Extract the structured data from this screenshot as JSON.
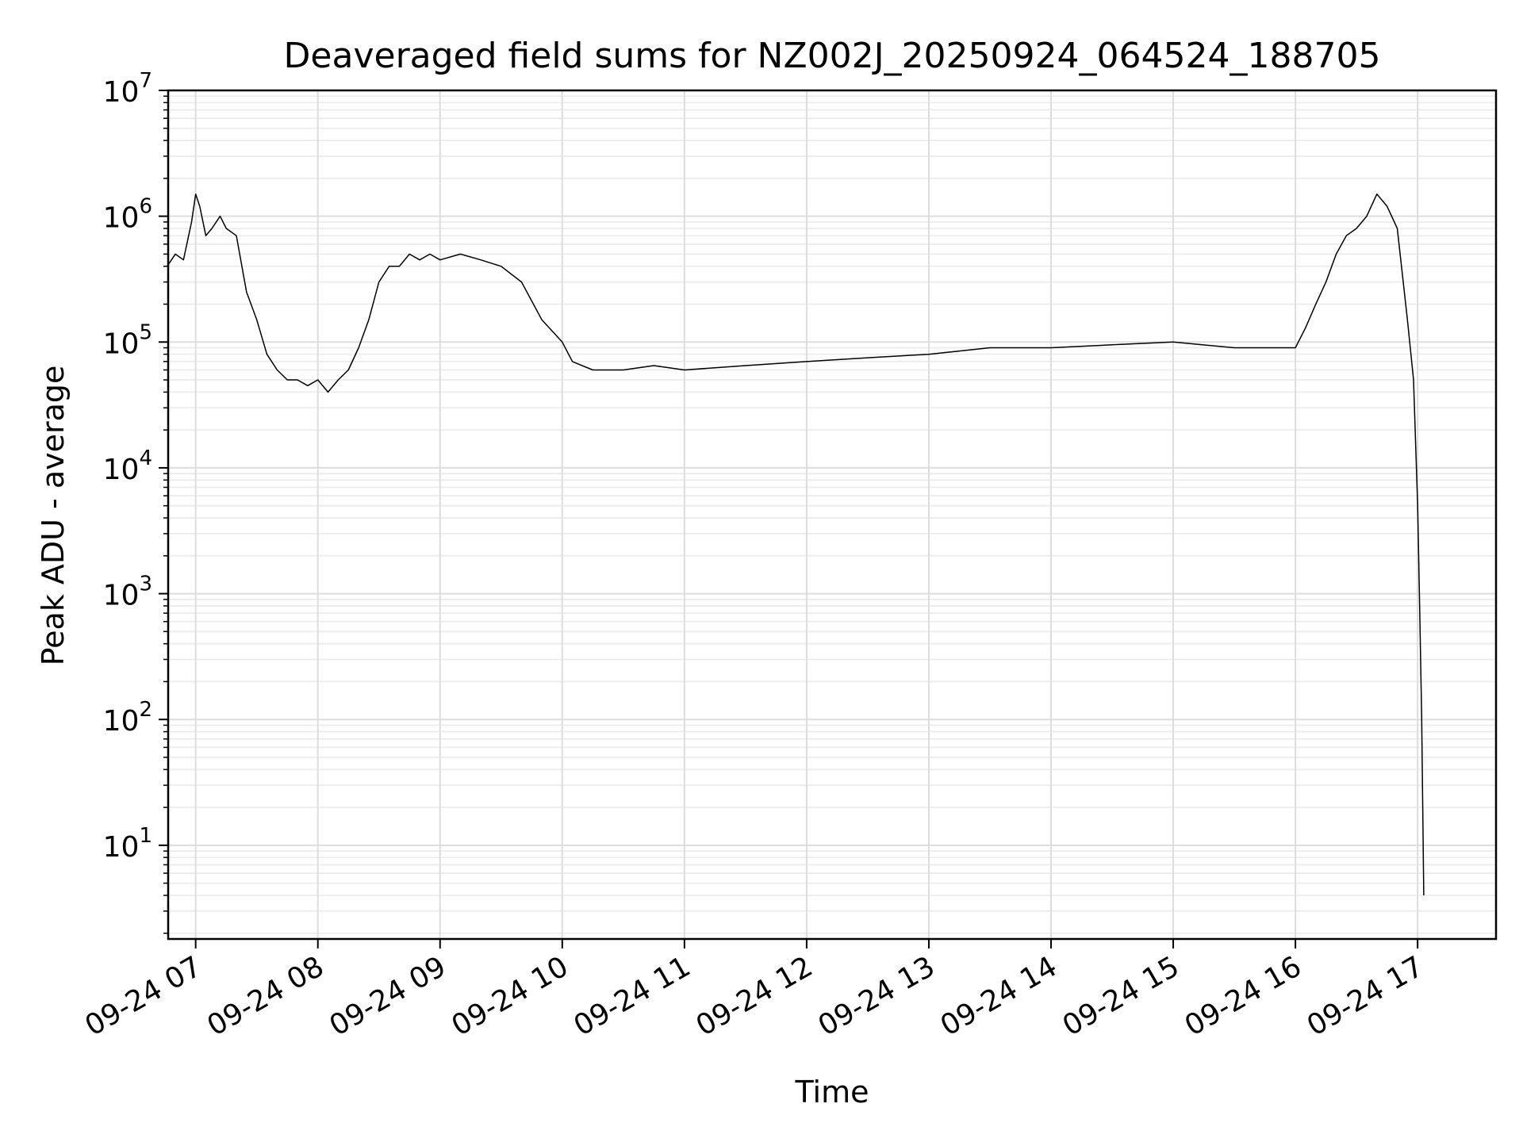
{
  "chart_data": {
    "type": "line",
    "title": "Deaveraged field sums for NZ002J_20250924_064524_188705",
    "xlabel": "Time",
    "ylabel": "Peak ADU - average",
    "y_scale": "log",
    "ylim": [
      1.8,
      10000000
    ],
    "xlim": [
      "09-24 06:46:30",
      "09-24 17:38:30"
    ],
    "grid": true,
    "grid_minor": true,
    "line_color": "#000000",
    "x_ticks": [
      {
        "label": "09-24 07",
        "value": "09-24 07:00"
      },
      {
        "label": "09-24 08",
        "value": "09-24 08:00"
      },
      {
        "label": "09-24 09",
        "value": "09-24 09:00"
      },
      {
        "label": "09-24 10",
        "value": "09-24 10:00"
      },
      {
        "label": "09-24 11",
        "value": "09-24 11:00"
      },
      {
        "label": "09-24 12",
        "value": "09-24 12:00"
      },
      {
        "label": "09-24 13",
        "value": "09-24 13:00"
      },
      {
        "label": "09-24 14",
        "value": "09-24 14:00"
      },
      {
        "label": "09-24 15",
        "value": "09-24 15:00"
      },
      {
        "label": "09-24 16",
        "value": "09-24 16:00"
      },
      {
        "label": "09-24 17",
        "value": "09-24 17:00"
      }
    ],
    "y_ticks": [
      {
        "base": "10",
        "exp": "1",
        "value": 10
      },
      {
        "base": "10",
        "exp": "2",
        "value": 100
      },
      {
        "base": "10",
        "exp": "3",
        "value": 1000
      },
      {
        "base": "10",
        "exp": "4",
        "value": 10000
      },
      {
        "base": "10",
        "exp": "5",
        "value": 100000
      },
      {
        "base": "10",
        "exp": "6",
        "value": 1000000
      },
      {
        "base": "10",
        "exp": "7",
        "value": 10000000
      }
    ],
    "series": [
      {
        "points": [
          [
            "09-24 06:46",
            400000
          ],
          [
            "09-24 06:50",
            500000
          ],
          [
            "09-24 06:54",
            450000
          ],
          [
            "09-24 06:58",
            900000
          ],
          [
            "09-24 07:00",
            1500000
          ],
          [
            "09-24 07:02",
            1200000
          ],
          [
            "09-24 07:05",
            700000
          ],
          [
            "09-24 07:08",
            800000
          ],
          [
            "09-24 07:12",
            1000000
          ],
          [
            "09-24 07:15",
            800000
          ],
          [
            "09-24 07:20",
            700000
          ],
          [
            "09-24 07:25",
            250000
          ],
          [
            "09-24 07:30",
            150000
          ],
          [
            "09-24 07:35",
            80000
          ],
          [
            "09-24 07:40",
            60000
          ],
          [
            "09-24 07:45",
            50000
          ],
          [
            "09-24 07:50",
            50000
          ],
          [
            "09-24 07:55",
            45000
          ],
          [
            "09-24 08:00",
            50000
          ],
          [
            "09-24 08:05",
            40000
          ],
          [
            "09-24 08:10",
            50000
          ],
          [
            "09-24 08:15",
            60000
          ],
          [
            "09-24 08:20",
            90000
          ],
          [
            "09-24 08:25",
            150000
          ],
          [
            "09-24 08:30",
            300000
          ],
          [
            "09-24 08:35",
            400000
          ],
          [
            "09-24 08:40",
            400000
          ],
          [
            "09-24 08:45",
            500000
          ],
          [
            "09-24 08:50",
            450000
          ],
          [
            "09-24 08:55",
            500000
          ],
          [
            "09-24 09:00",
            450000
          ],
          [
            "09-24 09:10",
            500000
          ],
          [
            "09-24 09:20",
            450000
          ],
          [
            "09-24 09:30",
            400000
          ],
          [
            "09-24 09:40",
            300000
          ],
          [
            "09-24 09:50",
            150000
          ],
          [
            "09-24 10:00",
            100000
          ],
          [
            "09-24 10:05",
            70000
          ],
          [
            "09-24 10:15",
            60000
          ],
          [
            "09-24 10:30",
            60000
          ],
          [
            "09-24 10:45",
            65000
          ],
          [
            "09-24 11:00",
            60000
          ],
          [
            "09-24 11:30",
            65000
          ],
          [
            "09-24 12:00",
            70000
          ],
          [
            "09-24 12:30",
            75000
          ],
          [
            "09-24 13:00",
            80000
          ],
          [
            "09-24 13:30",
            90000
          ],
          [
            "09-24 14:00",
            90000
          ],
          [
            "09-24 14:30",
            95000
          ],
          [
            "09-24 15:00",
            100000
          ],
          [
            "09-24 15:30",
            90000
          ],
          [
            "09-24 16:00",
            90000
          ],
          [
            "09-24 16:05",
            130000
          ],
          [
            "09-24 16:10",
            200000
          ],
          [
            "09-24 16:15",
            300000
          ],
          [
            "09-24 16:20",
            500000
          ],
          [
            "09-24 16:25",
            700000
          ],
          [
            "09-24 16:30",
            800000
          ],
          [
            "09-24 16:35",
            1000000
          ],
          [
            "09-24 16:40",
            1500000
          ],
          [
            "09-24 16:45",
            1200000
          ],
          [
            "09-24 16:50",
            800000
          ],
          [
            "09-24 16:55",
            150000
          ],
          [
            "09-24 16:58",
            50000
          ],
          [
            "09-24 17:00",
            5000
          ],
          [
            "09-24 17:01",
            800
          ],
          [
            "09-24 17:02",
            100
          ],
          [
            "09-24 17:03",
            4
          ]
        ]
      }
    ]
  }
}
